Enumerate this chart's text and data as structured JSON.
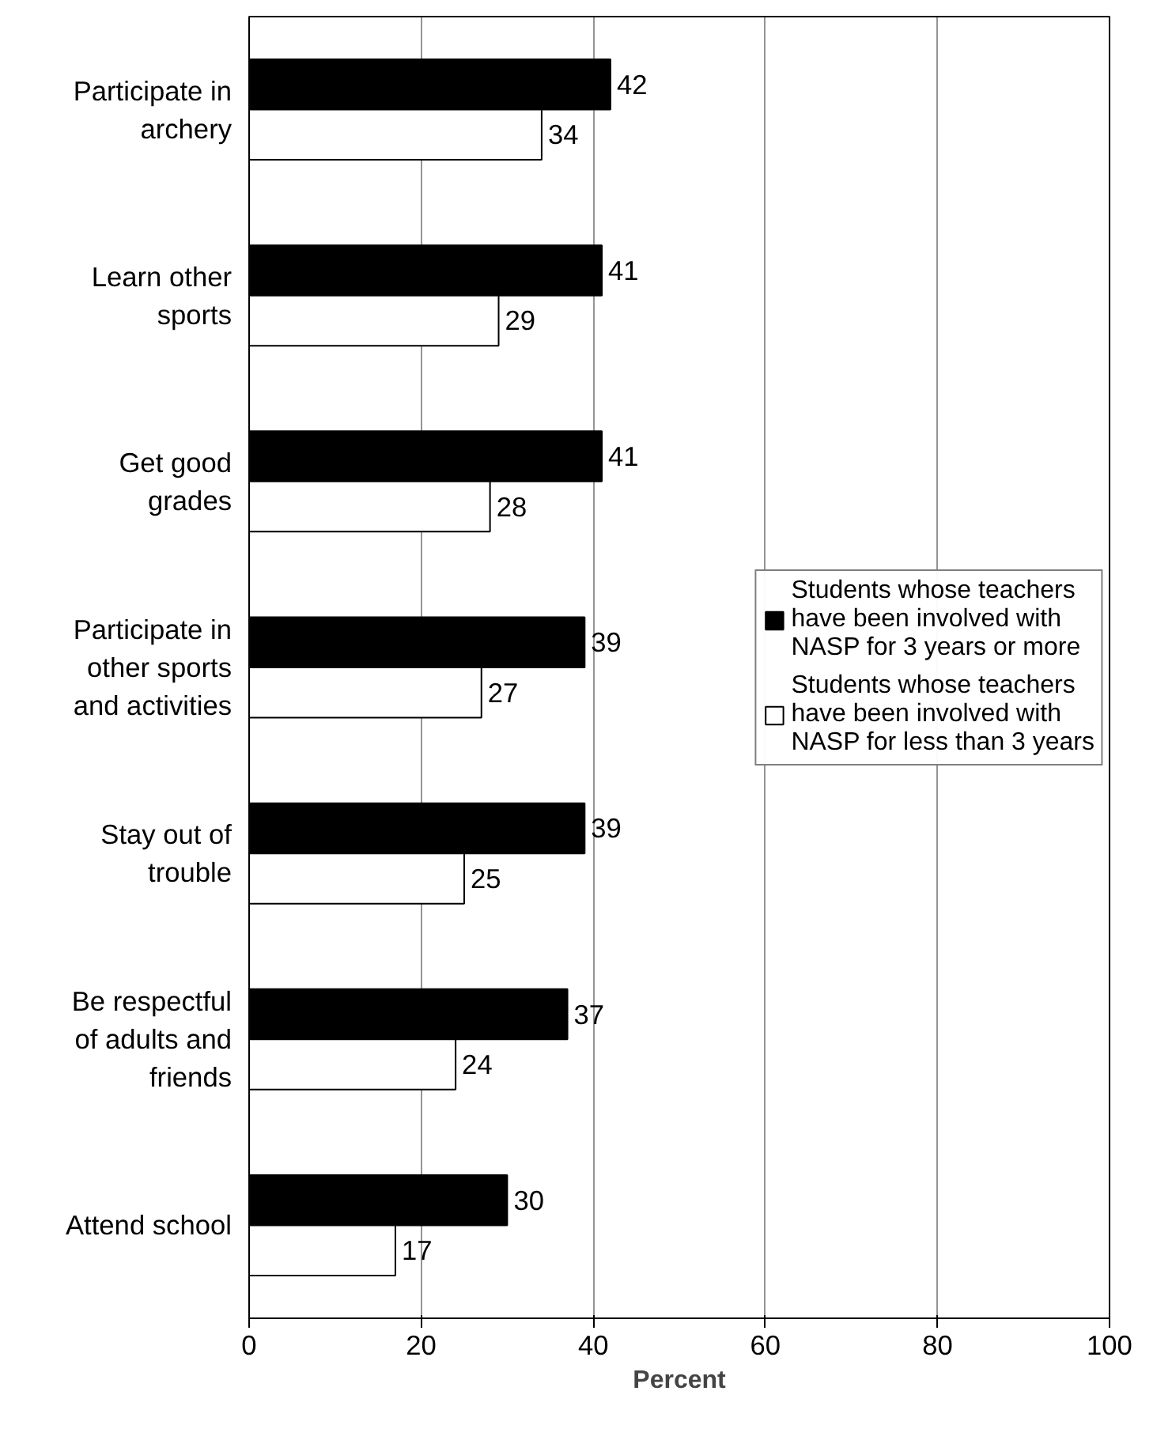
{
  "chart_data": {
    "type": "bar",
    "orientation": "horizontal",
    "xlabel": "Percent",
    "categories": [
      "Participate in archery",
      "Learn other sports",
      "Get good grades",
      "Participate in other sports and activities",
      "Stay out of trouble",
      "Be respectful of adults and friends",
      "Attend school"
    ],
    "series": [
      {
        "name": "Students whose teachers have been involved with NASP for 3 years or more",
        "color": "#000000",
        "values": [
          42,
          41,
          41,
          39,
          39,
          37,
          30
        ]
      },
      {
        "name": "Students whose teachers have been involved with NASP for less than 3 years",
        "color": "#ffffff",
        "values": [
          34,
          29,
          28,
          27,
          25,
          24,
          17
        ]
      }
    ],
    "xlim": [
      0,
      100
    ],
    "xticks": [
      0,
      20,
      40,
      60,
      80,
      100
    ],
    "grid": "x",
    "legend": "right",
    "data_labels": true
  }
}
